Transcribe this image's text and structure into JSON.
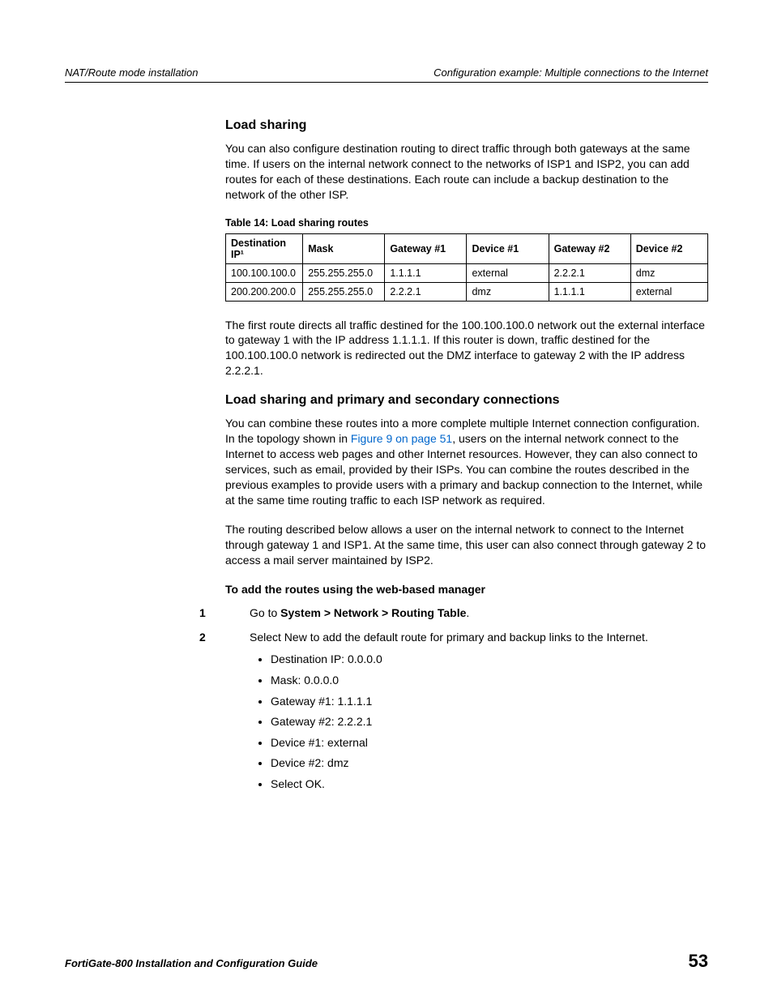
{
  "header": {
    "left": "NAT/Route mode installation",
    "right": "Configuration example: Multiple connections to the Internet"
  },
  "section1": {
    "title": "Load sharing",
    "para": "You can also configure destination routing to direct traffic through both gateways at the same time. If users on the internal network connect to the networks of ISP1 and ISP2, you can add routes for each of these destinations. Each route can include a backup destination to the network of the other ISP."
  },
  "table": {
    "caption": "Table 14: Load sharing routes",
    "columns": [
      "Destination IP¹",
      "Mask",
      "Gateway #1",
      "Device #1",
      "Gateway #2",
      "Device #2"
    ],
    "col_widths": [
      "16%",
      "17%",
      "17%",
      "17%",
      "17%",
      "16%"
    ],
    "rows": [
      [
        "100.100.100.0",
        "255.255.255.0",
        "1.1.1.1",
        "external",
        "2.2.2.1",
        "dmz"
      ],
      [
        "200.200.200.0",
        "255.255.255.0",
        "2.2.2.1",
        "dmz",
        "1.1.1.1",
        "external"
      ]
    ]
  },
  "para_after_table": "The first route directs all traffic destined for the 100.100.100.0 network out the external interface to gateway 1 with the IP address 1.1.1.1. If this router is down, traffic destined for the 100.100.100.0 network is redirected out the DMZ interface to gateway 2 with the IP address 2.2.2.1.",
  "section2": {
    "title": "Load sharing and primary and secondary connections",
    "para1_pre": "You can combine these routes into a more complete multiple Internet connection configuration. In the topology shown in ",
    "link_text": "Figure 9 on page 51",
    "para1_post": ", users on the internal network connect to the Internet to access web pages and other Internet resources. However, they can also connect to services, such as email, provided by their ISPs. You can combine the routes described in the previous examples to provide users with a primary and backup connection to the Internet, while at the same time routing traffic to each ISP network as required.",
    "para2": "The routing described below allows a user on the internal network to connect to the Internet through gateway 1 and ISP1. At the same time, this user can also connect through gateway 2 to access a mail server maintained by ISP2."
  },
  "procedure": {
    "title": "To add the routes using the web-based manager",
    "step1_pre": "Go to ",
    "step1_bold": "System > Network > Routing Table",
    "step1_post": ".",
    "step2": "Select New to add the default route for primary and backup links to the Internet.",
    "bullets": [
      "Destination IP: 0.0.0.0",
      "Mask: 0.0.0.0",
      "Gateway #1: 1.1.1.1",
      "Gateway #2: 2.2.2.1",
      "Device #1: external",
      "Device #2: dmz",
      "Select OK."
    ]
  },
  "footer": {
    "left": "FortiGate-800 Installation and Configuration Guide",
    "page": "53"
  },
  "colors": {
    "link": "#0066cc",
    "text": "#000000",
    "rule": "#000000"
  }
}
